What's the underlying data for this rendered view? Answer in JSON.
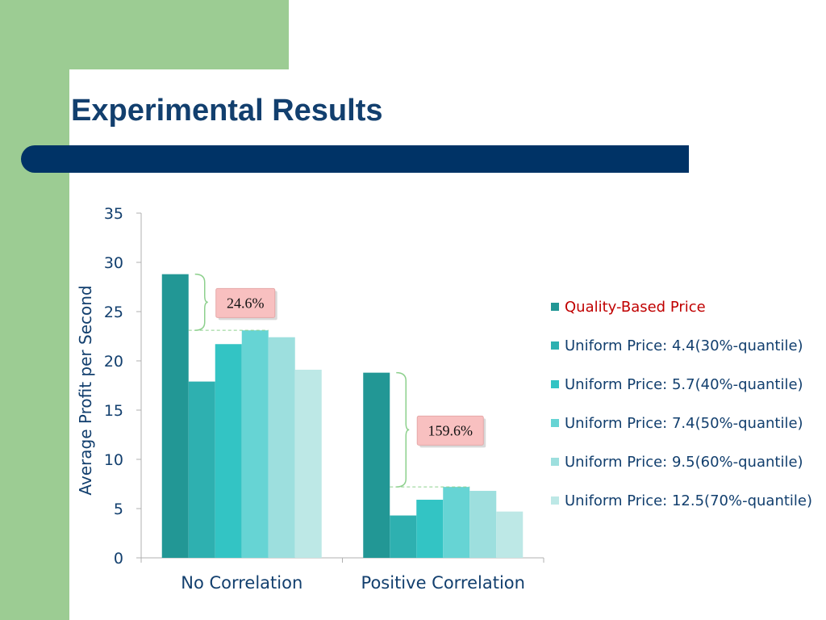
{
  "slide": {
    "title": "Experimental Results"
  },
  "colors": {
    "green_accent": "#9ccc93",
    "navy_band": "#003366",
    "title_text": "#123f6e",
    "legend_highlight": "#c00000",
    "callout_fill": "#f8c0c0"
  },
  "chart_data": {
    "type": "bar",
    "ylabel": "Average Profit per Second",
    "xlabel": "",
    "ylim": [
      0,
      35
    ],
    "yticks": [
      0,
      5,
      10,
      15,
      20,
      25,
      30,
      35
    ],
    "categories": [
      "No Correlation",
      "Positive Correlation"
    ],
    "legend_position": "right",
    "grid": false,
    "series": [
      {
        "name": "Quality-Based Price",
        "color": "#229795",
        "values": [
          28.8,
          18.8
        ]
      },
      {
        "name": "Uniform Price: 4.4(30%-quantile)",
        "color": "#2eb0b0",
        "values": [
          17.9,
          4.3
        ]
      },
      {
        "name": "Uniform Price: 5.7(40%-quantile)",
        "color": "#33c4c4",
        "values": [
          21.7,
          5.9
        ]
      },
      {
        "name": "Uniform Price: 7.4(50%-quantile)",
        "color": "#66d4d4",
        "values": [
          23.1,
          7.2
        ]
      },
      {
        "name": "Uniform Price: 9.5(60%-quantile)",
        "color": "#9ddfde",
        "values": [
          22.4,
          6.8
        ]
      },
      {
        "name": "Uniform Price: 12.5(70%-quantile)",
        "color": "#bde8e6",
        "values": [
          19.1,
          4.7
        ]
      }
    ],
    "annotations": [
      {
        "text": "24.6%",
        "category": 0
      },
      {
        "text": "159.6%",
        "category": 1
      }
    ]
  }
}
